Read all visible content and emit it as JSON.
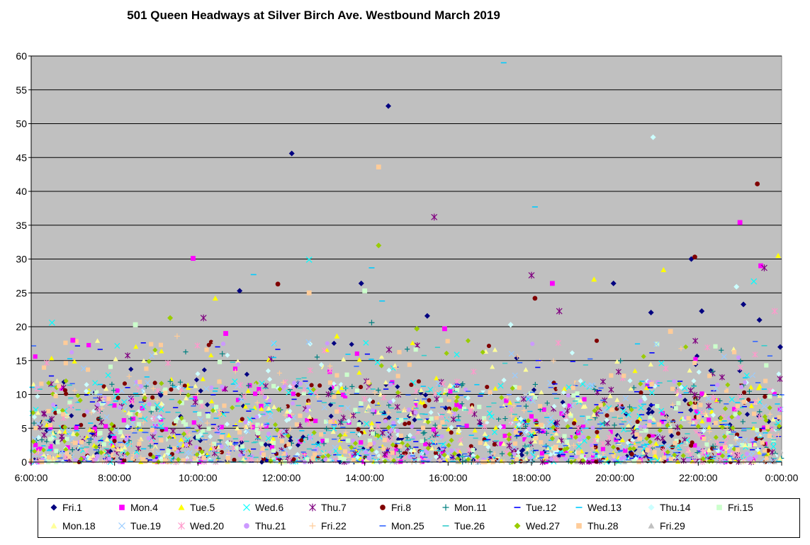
{
  "chart_data": {
    "type": "scatter",
    "title": "501 Queen Headways  at Silver Birch Ave. Westbound March 2019",
    "xlabel": "",
    "ylabel": "",
    "xlim": [
      "6:00:00",
      "0:00:00"
    ],
    "x_tick_labels": [
      "6:00:00",
      "8:00:00",
      "10:00:00",
      "12:00:00",
      "14:00:00",
      "16:00:00",
      "18:00:00",
      "20:00:00",
      "22:00:00",
      "0:00:00"
    ],
    "ylim": [
      0,
      60
    ],
    "y_tick_labels": [
      "0",
      "5",
      "10",
      "15",
      "20",
      "25",
      "30",
      "35",
      "40",
      "45",
      "50",
      "55",
      "60"
    ],
    "grid": "horizontal",
    "legend_position": "bottom",
    "plot_background": "#c0c0c0",
    "series": [
      {
        "name": "Fri.1",
        "color": "#000080",
        "marker": "diamond",
        "notable_points": [
          [
            "11:00",
            25.3
          ],
          [
            "12:15",
            45.6
          ],
          [
            "13:55",
            26.4
          ],
          [
            "14:34",
            52.6
          ],
          [
            "15:30",
            21.6
          ],
          [
            "19:58",
            26.4
          ],
          [
            "20:52",
            22.1
          ],
          [
            "21:50",
            30.0
          ],
          [
            "22:05",
            22.3
          ],
          [
            "23:05",
            23.3
          ],
          [
            "23:28",
            21.0
          ],
          [
            "23:58",
            17.0
          ]
        ]
      },
      {
        "name": "Mon.4",
        "color": "#ff00ff",
        "marker": "square",
        "notable_points": [
          [
            "7:00",
            18.0
          ],
          [
            "9:53",
            30.1
          ],
          [
            "10:40",
            19.0
          ],
          [
            "15:55",
            19.7
          ],
          [
            "18:30",
            26.4
          ],
          [
            "23:00",
            35.4
          ],
          [
            "23:30",
            29.0
          ]
        ]
      },
      {
        "name": "Tue.5",
        "color": "#ffff00",
        "marker": "triangle",
        "notable_points": [
          [
            "10:25",
            24.2
          ],
          [
            "13:20",
            18.6
          ],
          [
            "19:30",
            27.0
          ],
          [
            "21:10",
            28.4
          ],
          [
            "23:55",
            30.5
          ]
        ]
      },
      {
        "name": "Wed.6",
        "color": "#00ffff",
        "marker": "x",
        "notable_points": [
          [
            "6:30",
            20.6
          ],
          [
            "12:40",
            29.9
          ],
          [
            "23:20",
            26.7
          ]
        ]
      },
      {
        "name": "Thu.7",
        "color": "#800080",
        "marker": "star",
        "notable_points": [
          [
            "10:08",
            21.3
          ],
          [
            "14:35",
            16.6
          ],
          [
            "15:40",
            36.2
          ],
          [
            "18:00",
            27.6
          ],
          [
            "18:40",
            22.3
          ],
          [
            "23:35",
            28.7
          ]
        ]
      },
      {
        "name": "Fri.8",
        "color": "#800000",
        "marker": "circle",
        "notable_points": [
          [
            "11:55",
            26.3
          ],
          [
            "18:05",
            24.2
          ],
          [
            "21:55",
            30.3
          ],
          [
            "23:25",
            41.1
          ]
        ]
      },
      {
        "name": "Mon.11",
        "color": "#008080",
        "marker": "plus",
        "notable_points": [
          [
            "14:10",
            20.6
          ],
          [
            "10:35",
            16.0
          ]
        ]
      },
      {
        "name": "Tue.12",
        "color": "#0000ff",
        "marker": "dash",
        "notable_points": [
          [
            "18:10",
            15.0
          ]
        ]
      },
      {
        "name": "Wed.13",
        "color": "#00ccff",
        "marker": "dash",
        "notable_points": [
          [
            "17:20",
            59.0
          ],
          [
            "18:05",
            37.7
          ],
          [
            "11:20",
            27.7
          ],
          [
            "14:10",
            28.7
          ],
          [
            "14:25",
            23.8
          ]
        ]
      },
      {
        "name": "Thu.14",
        "color": "#ccffff",
        "marker": "diamond",
        "notable_points": [
          [
            "20:55",
            48.0
          ],
          [
            "17:30",
            20.3
          ],
          [
            "22:55",
            25.9
          ]
        ]
      },
      {
        "name": "Fri.15",
        "color": "#ccffcc",
        "marker": "square",
        "notable_points": [
          [
            "8:30",
            20.3
          ],
          [
            "14:00",
            25.3
          ]
        ]
      },
      {
        "name": "Mon.18",
        "color": "#ffff99",
        "marker": "triangle",
        "notable_points": []
      },
      {
        "name": "Tue.19",
        "color": "#99ccff",
        "marker": "x",
        "notable_points": []
      },
      {
        "name": "Wed.20",
        "color": "#ff99cc",
        "marker": "star",
        "notable_points": [
          [
            "23:50",
            22.3
          ]
        ]
      },
      {
        "name": "Thu.21",
        "color": "#cc99ff",
        "marker": "circle",
        "notable_points": []
      },
      {
        "name": "Fri.22",
        "color": "#ffcc99",
        "marker": "plus",
        "notable_points": [
          [
            "9:30",
            18.6
          ]
        ]
      },
      {
        "name": "Mon.25",
        "color": "#3366ff",
        "marker": "dash",
        "notable_points": []
      },
      {
        "name": "Tue.26",
        "color": "#33cccc",
        "marker": "dash",
        "notable_points": [
          [
            "23:35",
            17.2
          ]
        ]
      },
      {
        "name": "Wed.27",
        "color": "#99cc00",
        "marker": "diamond",
        "notable_points": [
          [
            "9:20",
            21.3
          ],
          [
            "14:20",
            32.0
          ],
          [
            "15:15",
            19.7
          ]
        ]
      },
      {
        "name": "Thu.28",
        "color": "#ffcc99",
        "marker": "square",
        "notable_points": [
          [
            "14:20",
            43.6
          ],
          [
            "12:40",
            25.0
          ],
          [
            "21:20",
            19.3
          ]
        ]
      },
      {
        "name": "Fri.29",
        "color": "#c0c0c0",
        "marker": "triangle",
        "notable_points": [
          [
            "13:55",
            22.8
          ],
          [
            "16:50",
            24.2
          ],
          [
            "21:45",
            18.6
          ]
        ]
      }
    ],
    "bulk_distribution_note_values": {
      "typical_headway_min": 0,
      "typical_headway_max": 12
    }
  }
}
